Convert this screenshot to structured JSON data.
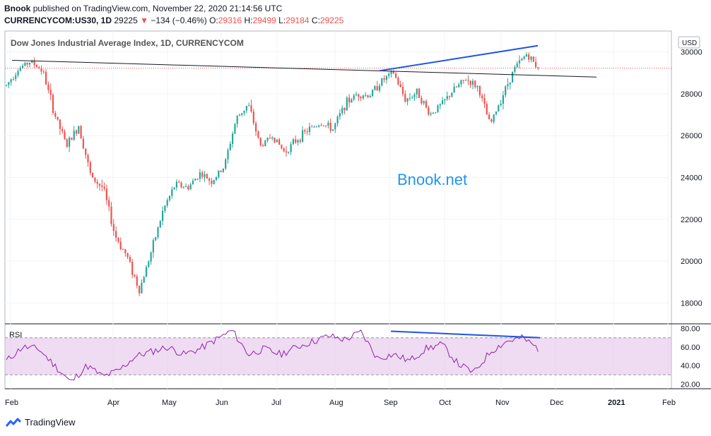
{
  "header": {
    "publisher": "Bnook",
    "published_text": "published on TradingView.com, November 22, 2020 21:14:56 UTC",
    "symbol": "CURRENCYCOM:US30, 1D",
    "last": "29225",
    "arrow": "▼",
    "change": "−134 (−0.46%)",
    "o_label": "O:",
    "o_value": "29316",
    "h_label": "H:",
    "h_value": "29499",
    "l_label": "L:",
    "l_value": "29184",
    "c_label": "C:",
    "c_value": "29225"
  },
  "footer": {
    "brand": "TradingView"
  },
  "chart_data": {
    "type": "candlestick",
    "title": "Dow Jones Industrial Average Index, 1D, CURRENCYCOM",
    "currency_badge": "USD",
    "watermark": "Bnook.net",
    "price_axis": {
      "ylim": [
        17000,
        31000
      ],
      "ticks": [
        18000,
        20000,
        22000,
        24000,
        26000,
        28000,
        30000
      ]
    },
    "time_axis": {
      "ticks": [
        "Feb",
        "Apr",
        "May",
        "Jun",
        "Jul",
        "Aug",
        "Sep",
        "Oct",
        "Nov",
        "Dec",
        "2021",
        "Feb"
      ]
    },
    "last_price": 29225,
    "colors": {
      "up": "#26a69a",
      "down": "#ef5350",
      "trend": "#1e53e5",
      "line": "#000000",
      "rsi": "#8e24aa",
      "rsi_band": "#e1bee7"
    },
    "close_path": [
      [
        "Feb",
        28400
      ],
      [
        "Feb",
        29200
      ],
      [
        "Feb",
        29550
      ],
      [
        "Feb",
        29100
      ],
      [
        "Feb",
        27000
      ],
      [
        "Feb",
        25500
      ],
      [
        "Feb",
        26500
      ],
      [
        "Feb",
        24000
      ],
      [
        "Feb",
        23500
      ],
      [
        "Feb",
        21200
      ],
      [
        "Feb",
        20200
      ],
      [
        "Feb",
        18600
      ],
      [
        "Apr",
        20500
      ],
      [
        "Apr",
        22500
      ],
      [
        "Apr",
        23700
      ],
      [
        "Apr",
        23500
      ],
      [
        "May",
        24200
      ],
      [
        "May",
        23800
      ],
      [
        "May",
        24500
      ],
      [
        "Jun",
        26800
      ],
      [
        "Jun",
        27500
      ],
      [
        "Jun",
        25500
      ],
      [
        "Jun",
        26000
      ],
      [
        "Jun",
        25200
      ],
      [
        "Jul",
        25800
      ],
      [
        "Jul",
        26300
      ],
      [
        "Jul",
        26600
      ],
      [
        "Jul",
        26300
      ],
      [
        "Aug",
        27500
      ],
      [
        "Aug",
        28000
      ],
      [
        "Aug",
        27900
      ],
      [
        "Aug",
        28600
      ],
      [
        "Sep",
        29000
      ],
      [
        "Sep",
        27700
      ],
      [
        "Sep",
        28100
      ],
      [
        "Sep",
        27000
      ],
      [
        "Oct",
        27500
      ],
      [
        "Oct",
        28200
      ],
      [
        "Oct",
        28700
      ],
      [
        "Oct",
        28300
      ],
      [
        "Nov",
        26500
      ],
      [
        "Nov",
        27900
      ],
      [
        "Nov",
        29200
      ],
      [
        "Nov",
        29900
      ],
      [
        "Nov",
        29225
      ]
    ],
    "trendlines": [
      {
        "name": "resistance",
        "from": [
          "Jan",
          29600
        ],
        "to": [
          "Dec",
          28800
        ]
      },
      {
        "name": "price-top",
        "from": [
          "Aug",
          29100
        ],
        "to": [
          "Nov",
          30300
        ]
      }
    ],
    "rsi": {
      "label": "RSI",
      "ylim": [
        15,
        85
      ],
      "ticks": [
        "80.00",
        "60.00",
        "40.00",
        "20.00"
      ],
      "band": [
        30,
        70
      ],
      "path": [
        [
          "Feb",
          45
        ],
        [
          "Feb",
          60
        ],
        [
          "Feb",
          58
        ],
        [
          "Feb",
          40
        ],
        [
          "Feb",
          22
        ],
        [
          "Feb",
          40
        ],
        [
          "Feb",
          28
        ],
        [
          "Feb",
          35
        ],
        [
          "Apr",
          50
        ],
        [
          "Apr",
          55
        ],
        [
          "May",
          60
        ],
        [
          "May",
          52
        ],
        [
          "May",
          58
        ],
        [
          "Jun",
          68
        ],
        [
          "Jun",
          78
        ],
        [
          "Jun",
          52
        ],
        [
          "Jul",
          58
        ],
        [
          "Jul",
          52
        ],
        [
          "Jul",
          60
        ],
        [
          "Aug",
          66
        ],
        [
          "Aug",
          72
        ],
        [
          "Aug",
          68
        ],
        [
          "Sep",
          76
        ],
        [
          "Sep",
          48
        ],
        [
          "Sep",
          52
        ],
        [
          "Oct",
          45
        ],
        [
          "Oct",
          58
        ],
        [
          "Oct",
          63
        ],
        [
          "Nov",
          42
        ],
        [
          "Nov",
          32
        ],
        [
          "Nov",
          55
        ],
        [
          "Nov",
          66
        ],
        [
          "Nov",
          70
        ],
        [
          "Nov",
          58
        ]
      ],
      "divergence": {
        "from": [
          "Sep",
          77
        ],
        "to": [
          "Nov",
          70
        ]
      }
    }
  }
}
